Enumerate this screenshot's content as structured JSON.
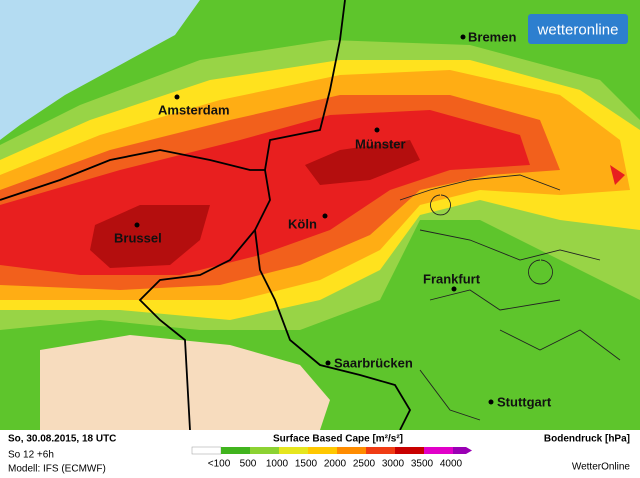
{
  "brand": "wetteronline",
  "cities": [
    {
      "label": "Bremen"
    },
    {
      "label": "Amsterdam"
    },
    {
      "label": "Münster"
    },
    {
      "label": "Köln"
    },
    {
      "label": "Brussel"
    },
    {
      "label": "Frankfurt"
    },
    {
      "label": "Saarbrücken"
    },
    {
      "label": "Stuttgart"
    }
  ],
  "footer": {
    "date": "So, 30.08.2015, 18 UTC",
    "run": "So 12 +6h",
    "model": "Modell: IFS (ECMWF)",
    "title": "Surface Based Cape [m²/s²]",
    "legend_labels": [
      "<100",
      "500",
      "1000",
      "1500",
      "2000",
      "2500",
      "3000",
      "3500",
      "4000"
    ],
    "pressure": "Bodendruck [hPa]",
    "credit": "WetterOnline"
  }
}
